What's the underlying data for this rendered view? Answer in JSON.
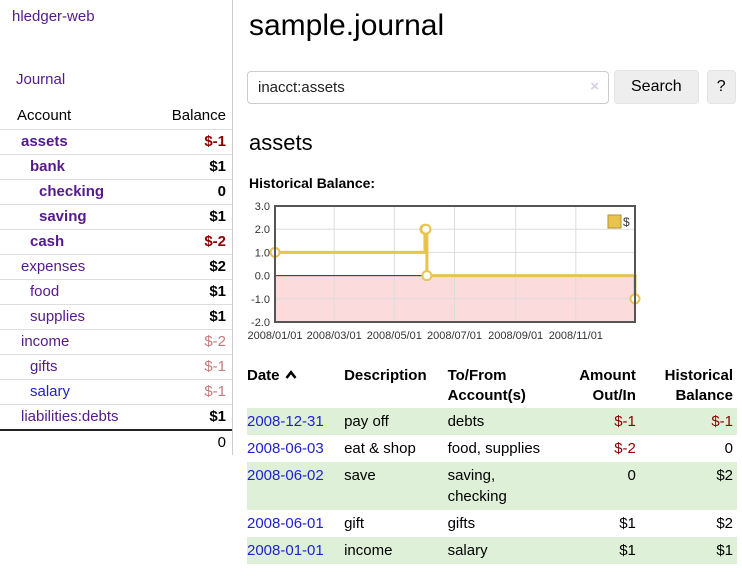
{
  "app": {
    "brand": "hledger-web",
    "nav_journal": "Journal"
  },
  "colors": {
    "purple_link": "#551A8B",
    "blue_link": "#2222CC",
    "negative": "#8B0000",
    "negative_soft": "#C47C7C",
    "stripe_green": "#DFF0D8",
    "chart_line": "#E8C44F",
    "chart_line_border": "#B5922C",
    "chart_fill_negative": "#FBDBDB",
    "zero_line": "#990000",
    "grid": "#DDDDDD",
    "chart_border": "#555555",
    "axis_text": "#333333"
  },
  "sidebar": {
    "headers": [
      "Account",
      "Balance"
    ],
    "rows": [
      {
        "account": "assets",
        "balance": "$-1",
        "depth": 0,
        "bold": true,
        "link": "purple",
        "value": "neg"
      },
      {
        "account": "bank",
        "balance": "$1",
        "depth": 1,
        "bold": true,
        "link": "purple",
        "value": "pos"
      },
      {
        "account": "checking",
        "balance": "0",
        "depth": 2,
        "bold": true,
        "link": "purple",
        "value": "pos"
      },
      {
        "account": "saving",
        "balance": "$1",
        "depth": 2,
        "bold": true,
        "link": "purple",
        "value": "pos"
      },
      {
        "account": "cash",
        "balance": "$-2",
        "depth": 1,
        "bold": true,
        "link": "purple",
        "value": "neg"
      },
      {
        "account": "expenses",
        "balance": "$2",
        "depth": 0,
        "bold": false,
        "link": "purple",
        "value": "pos"
      },
      {
        "account": "food",
        "balance": "$1",
        "depth": 1,
        "bold": false,
        "link": "purple",
        "value": "pos"
      },
      {
        "account": "supplies",
        "balance": "$1",
        "depth": 1,
        "bold": false,
        "link": "purple",
        "value": "pos"
      },
      {
        "account": "income",
        "balance": "$-2",
        "depth": 0,
        "bold": false,
        "link": "purple",
        "value": "negsoft"
      },
      {
        "account": "gifts",
        "balance": "$-1",
        "depth": 1,
        "bold": false,
        "link": "purple",
        "value": "negsoft"
      },
      {
        "account": "salary",
        "balance": "$-1",
        "depth": 1,
        "bold": false,
        "link": "blue",
        "value": "negsoft"
      },
      {
        "account": "liabilities:debts",
        "balance": "$1",
        "depth": 0,
        "bold": false,
        "link": "purple",
        "value": "pos"
      }
    ],
    "total": "0"
  },
  "header": {
    "title": "sample.journal"
  },
  "search": {
    "value": "inacct:assets",
    "clear_icon": "×",
    "button_label": "Search",
    "help_label": "?"
  },
  "account_page": {
    "heading": "assets",
    "chart_label": "Historical Balance:"
  },
  "chart_data": {
    "type": "line",
    "step": true,
    "title": "Historical Balance",
    "legend": "$",
    "series": [
      {
        "name": "$",
        "points": [
          [
            "2008-01-01",
            1
          ],
          [
            "2008-06-01",
            2
          ],
          [
            "2008-06-02",
            2
          ],
          [
            "2008-06-03",
            0
          ],
          [
            "2008-12-31",
            -1
          ]
        ]
      }
    ],
    "xlim": [
      "2008-01-01",
      "2008-12-31"
    ],
    "ylim": [
      -2,
      3
    ],
    "x_ticks": [
      "2008/01/01",
      "2008/03/01",
      "2008/05/01",
      "2008/07/01",
      "2008/09/01",
      "2008/11/01"
    ],
    "y_ticks": [
      "3.0",
      "2.0",
      "1.0",
      "0.0",
      "-1.0",
      "-2.0"
    ],
    "grid": true,
    "negative_region_shaded": true,
    "legend_position": "top-right"
  },
  "register": {
    "headers": [
      "Date",
      "Description",
      "To/From Account(s)",
      "Amount Out/In",
      "Historical Balance"
    ],
    "rows": [
      {
        "date": "2008-12-31",
        "description": "pay off",
        "accounts": "debts",
        "amount": "$-1",
        "amount_neg": true,
        "balance": "$-1",
        "balance_neg": true,
        "stripe": true
      },
      {
        "date": "2008-06-03",
        "description": "eat & shop",
        "accounts": "food, supplies",
        "amount": "$-2",
        "amount_neg": true,
        "balance": "0",
        "balance_neg": false,
        "stripe": false
      },
      {
        "date": "2008-06-02",
        "description": "save",
        "accounts": "saving, checking",
        "amount": "0",
        "amount_neg": false,
        "balance": "$2",
        "balance_neg": false,
        "stripe": true
      },
      {
        "date": "2008-06-01",
        "description": "gift",
        "accounts": "gifts",
        "amount": "$1",
        "amount_neg": false,
        "balance": "$2",
        "balance_neg": false,
        "stripe": false
      },
      {
        "date": "2008-01-01",
        "description": "income",
        "accounts": "salary",
        "amount": "$1",
        "amount_neg": false,
        "balance": "$1",
        "balance_neg": false,
        "stripe": true
      }
    ]
  }
}
